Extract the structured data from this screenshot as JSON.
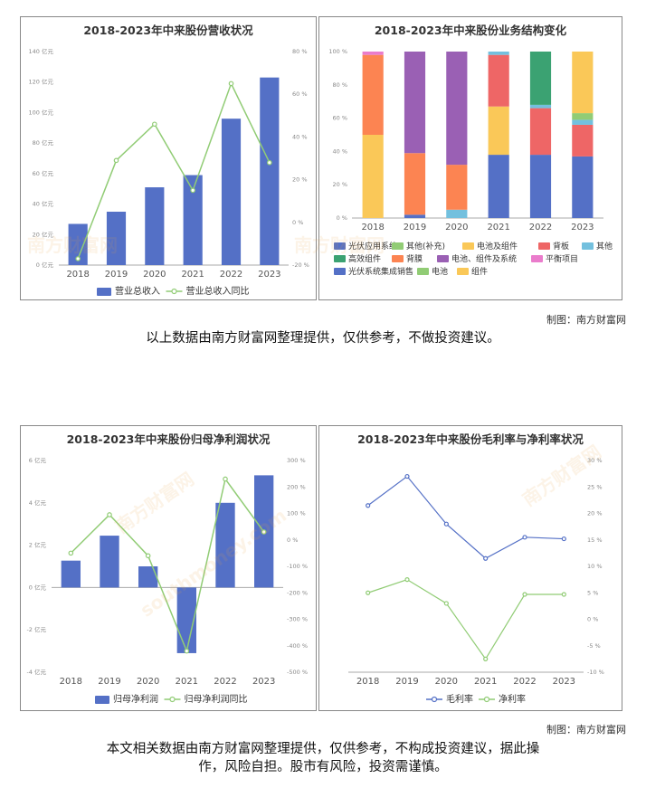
{
  "credit_label": "制图：南方财富网",
  "disclaimer1": "以上数据由南方财富网整理提供，仅供参考，不做投资建议。",
  "disclaimer2_line1": "本文相关数据由南方财富网整理提供，仅供参考，不构成投资建议，据此操",
  "disclaimer2_line2": "作，风险自担。股市有风险，投资需谨慎。",
  "watermark": "南方财富网",
  "watermark_url": "southmoney.com",
  "colors": {
    "bar": "#5470c6",
    "line": "#91cc75",
    "gross": "#5470c6"
  },
  "chart_data": [
    {
      "id": "revenue",
      "type": "bar+line",
      "title": "2018-2023年中来股份营收状况",
      "categories": [
        "2018",
        "2019",
        "2020",
        "2021",
        "2022",
        "2023"
      ],
      "series": [
        {
          "name": "营业总收入",
          "type": "bar",
          "axis": "left",
          "values": [
            27,
            35,
            51,
            59,
            96,
            123
          ]
        },
        {
          "name": "营业总收入同比",
          "type": "line",
          "axis": "right",
          "values": [
            -17,
            29,
            46,
            15,
            65,
            28
          ]
        }
      ],
      "y_left": {
        "min": 0,
        "max": 140,
        "ticks": [
          0,
          20,
          40,
          60,
          80,
          100,
          120,
          140
        ],
        "tick_labels": [
          "0 亿元",
          "20 亿元",
          "40 亿元",
          "60 亿元",
          "80 亿元",
          "100 亿元",
          "120 亿元",
          "140 亿元"
        ]
      },
      "y_right": {
        "min": -20,
        "max": 80,
        "ticks": [
          -20,
          0,
          20,
          40,
          60,
          80
        ],
        "tick_labels": [
          "-20 %",
          "0 %",
          "20 %",
          "40 %",
          "60 %",
          "80 %"
        ]
      },
      "legend": [
        "营业总收入",
        "营业总收入同比"
      ]
    },
    {
      "id": "structure",
      "type": "stacked-bar",
      "title": "2018-2023年中来股份业务结构变化",
      "categories": [
        "2018",
        "2019",
        "2020",
        "2021",
        "2022",
        "2023"
      ],
      "y_left": {
        "min": 0,
        "max": 100,
        "ticks": [
          0,
          20,
          40,
          60,
          80,
          100
        ],
        "tick_labels": [
          "0 %",
          "20 %",
          "40 %",
          "60 %",
          "80 %",
          "100 %"
        ]
      },
      "series": [
        {
          "name": "光伏应用系统",
          "color": "#5470c6",
          "values": [
            0,
            2,
            0,
            38,
            38,
            37
          ]
        },
        {
          "name": "其他(补充)",
          "color": "#91cc75",
          "values": [
            0,
            0,
            0,
            0,
            0,
            0
          ]
        },
        {
          "name": "电池及组件",
          "color": "#fac858",
          "values": [
            50,
            0,
            0,
            29,
            0,
            0
          ]
        },
        {
          "name": "背板",
          "color": "#ee6666",
          "values": [
            0,
            0,
            0,
            31,
            28,
            19
          ]
        },
        {
          "name": "其他",
          "color": "#73c0de",
          "values": [
            0,
            0,
            5,
            2,
            2,
            3
          ]
        },
        {
          "name": "高效组件",
          "color": "#3ba272",
          "values": [
            0,
            0,
            0,
            0,
            32,
            0
          ]
        },
        {
          "name": "背膜",
          "color": "#fc8452",
          "values": [
            48,
            37,
            27,
            0,
            0,
            0
          ]
        },
        {
          "name": "电池、组件及系统",
          "color": "#9a60b4",
          "values": [
            0,
            61,
            68,
            0,
            0,
            0
          ]
        },
        {
          "name": "平衡项目",
          "color": "#ea7ccc",
          "values": [
            2,
            0,
            0,
            0,
            0,
            0
          ]
        },
        {
          "name": "光伏系统集成销售",
          "color": "#5470c6",
          "values": [
            0,
            0,
            0,
            0,
            0,
            0
          ]
        },
        {
          "name": "电池",
          "color": "#91cc75",
          "values": [
            0,
            0,
            0,
            0,
            0,
            4
          ]
        },
        {
          "name": "组件",
          "color": "#fac858",
          "values": [
            0,
            0,
            0,
            0,
            0,
            37
          ]
        }
      ],
      "legend_rows": [
        [
          "光伏应用系统",
          "其他(补充)",
          "电池及组件",
          "背板",
          "其他"
        ],
        [
          "高效组件",
          "背膜",
          "电池、组件及系统",
          "平衡项目"
        ],
        [
          "光伏系统集成销售",
          "电池",
          "组件"
        ]
      ]
    },
    {
      "id": "profit",
      "type": "bar+line",
      "title": "2018-2023年中来股份归母净利润状况",
      "categories": [
        "2018",
        "2019",
        "2020",
        "2021",
        "2022",
        "2023"
      ],
      "series": [
        {
          "name": "归母净利润",
          "type": "bar",
          "axis": "left",
          "values": [
            1.27,
            2.45,
            1.0,
            -3.1,
            4.0,
            5.3
          ]
        },
        {
          "name": "归母净利润同比",
          "type": "line",
          "axis": "right",
          "values": [
            -50,
            95,
            -60,
            -420,
            230,
            30
          ]
        }
      ],
      "y_left": {
        "min": -4,
        "max": 6,
        "ticks": [
          -4,
          -2,
          0,
          2,
          4,
          6
        ],
        "tick_labels": [
          "-4 亿元",
          "-2 亿元",
          "0 亿元",
          "2 亿元",
          "4 亿元",
          "6 亿元"
        ]
      },
      "y_right": {
        "min": -500,
        "max": 300,
        "ticks": [
          -500,
          -400,
          -300,
          -200,
          -100,
          0,
          100,
          200,
          300
        ],
        "tick_labels": [
          "-500 %",
          "-400 %",
          "-300 %",
          "-200 %",
          "-100 %",
          "0 %",
          "100 %",
          "200 %",
          "300 %"
        ]
      },
      "legend": [
        "归母净利润",
        "归母净利润同比"
      ]
    },
    {
      "id": "margin",
      "type": "line",
      "title": "2018-2023年中来股份毛利率与净利率状况",
      "categories": [
        "2018",
        "2019",
        "2020",
        "2021",
        "2022",
        "2023"
      ],
      "series": [
        {
          "name": "毛利率",
          "color": "#5470c6",
          "values": [
            21.5,
            27,
            18,
            11.5,
            15.5,
            15.2
          ]
        },
        {
          "name": "净利率",
          "color": "#91cc75",
          "values": [
            5,
            7.5,
            3,
            -7.5,
            4.7,
            4.7
          ]
        }
      ],
      "y_right": {
        "min": -10,
        "max": 30,
        "ticks": [
          -10,
          -5,
          0,
          5,
          10,
          15,
          20,
          25,
          30
        ],
        "tick_labels": [
          "-10 %",
          "-5 %",
          "0 %",
          "5 %",
          "10 %",
          "15 %",
          "20 %",
          "25 %",
          "30 %"
        ]
      },
      "legend": [
        "毛利率",
        "净利率"
      ]
    }
  ]
}
